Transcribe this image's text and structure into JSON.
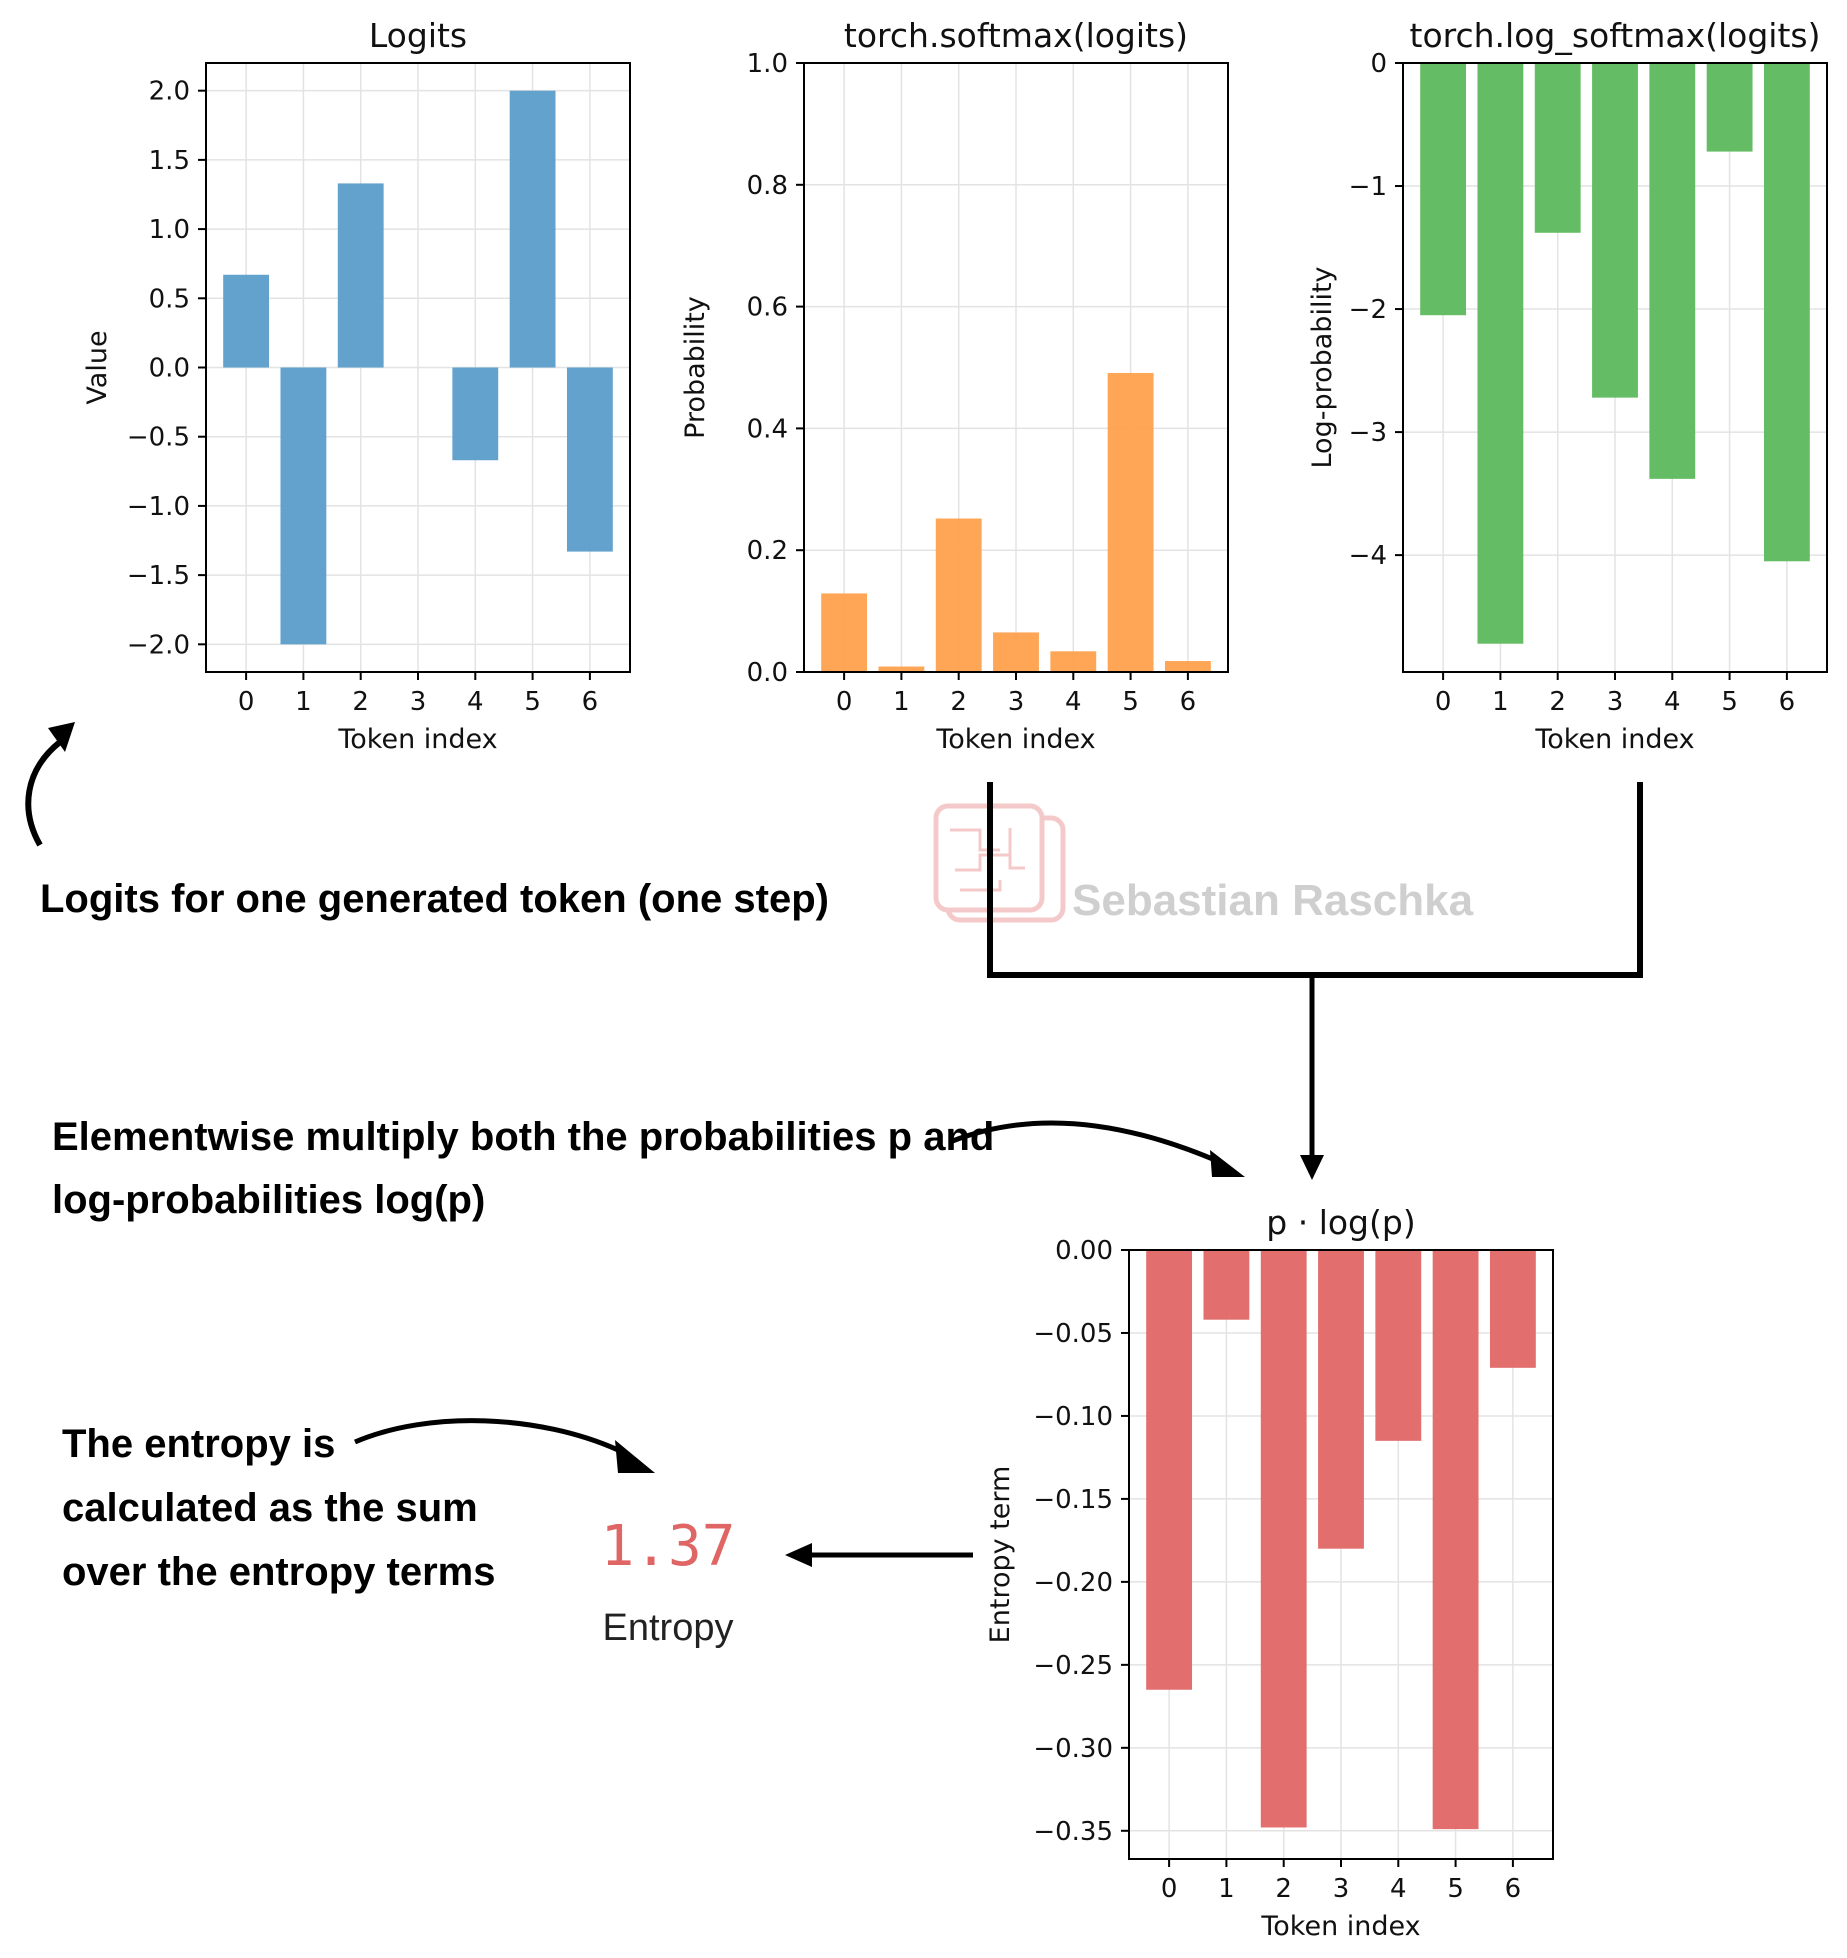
{
  "chart_data": [
    {
      "id": "logits",
      "type": "bar",
      "title": "Logits",
      "xlabel": "Token index",
      "ylabel": "Value",
      "categories": [
        "0",
        "1",
        "2",
        "3",
        "4",
        "5",
        "6"
      ],
      "values": [
        0.67,
        -2.0,
        1.33,
        0.0,
        -0.67,
        2.0,
        -1.33
      ],
      "ylim": [
        -2.2,
        2.2
      ],
      "yticks": [
        2.0,
        1.5,
        1.0,
        0.5,
        0.0,
        -0.5,
        -1.0,
        -1.5,
        -2.0
      ],
      "ytick_labels": [
        "2.0",
        "1.5",
        "1.0",
        "0.5",
        "0.0",
        "−0.5",
        "−1.0",
        "−1.5",
        "−2.0"
      ],
      "color": "#5b9dc9",
      "grid": true
    },
    {
      "id": "softmax",
      "type": "bar",
      "title": "torch.softmax(logits)",
      "xlabel": "Token index",
      "ylabel": "Probability",
      "categories": [
        "0",
        "1",
        "2",
        "3",
        "4",
        "5",
        "6"
      ],
      "values": [
        0.129,
        0.009,
        0.252,
        0.065,
        0.034,
        0.491,
        0.018
      ],
      "ylim": [
        0.0,
        1.0
      ],
      "yticks": [
        1.0,
        0.8,
        0.6,
        0.4,
        0.2,
        0.0
      ],
      "ytick_labels": [
        "1.0",
        "0.8",
        "0.6",
        "0.4",
        "0.2",
        "0.0"
      ],
      "color": "#ffa04d",
      "grid": true
    },
    {
      "id": "log_softmax",
      "type": "bar",
      "title": "torch.log_softmax(logits)",
      "xlabel": "Token index",
      "ylabel": "Log-probability",
      "categories": [
        "0",
        "1",
        "2",
        "3",
        "4",
        "5",
        "6"
      ],
      "values": [
        -2.05,
        -4.72,
        -1.38,
        -2.72,
        -3.38,
        -0.72,
        -4.05
      ],
      "ylim": [
        -4.95,
        0.0
      ],
      "yticks": [
        0,
        -1,
        -2,
        -3,
        -4
      ],
      "ytick_labels": [
        "0",
        "−1",
        "−2",
        "−3",
        "−4"
      ],
      "color": "#5cb85c",
      "grid": true
    },
    {
      "id": "entropy_terms",
      "type": "bar",
      "title": "p · log(p)",
      "xlabel": "Token index",
      "ylabel": "Entropy term",
      "categories": [
        "0",
        "1",
        "2",
        "3",
        "4",
        "5",
        "6"
      ],
      "values": [
        -0.265,
        -0.042,
        -0.348,
        -0.18,
        -0.115,
        -0.349,
        -0.071
      ],
      "ylim": [
        -0.367,
        0.0
      ],
      "yticks": [
        0.0,
        -0.05,
        -0.1,
        -0.15,
        -0.2,
        -0.25,
        -0.3,
        -0.35
      ],
      "ytick_labels": [
        "0.00",
        "−0.05",
        "−0.10",
        "−0.15",
        "−0.20",
        "−0.25",
        "−0.30",
        "−0.35"
      ],
      "color": "#e06666",
      "grid": true
    }
  ],
  "annotations": {
    "logits_caption": "Logits for one generated token (one step)",
    "multiply_line1": "Elementwise multiply both the probabilities p and",
    "multiply_line2": "log-probabilities log(p)",
    "sum_line1": "The entropy is",
    "sum_line2": "calculated as the sum",
    "sum_line3": "over the entropy terms"
  },
  "result": {
    "value": "1.37",
    "label": "Entropy"
  },
  "watermark": {
    "text": "Sebastian Raschka"
  },
  "colors": {
    "logits": "#5b9dc9",
    "softmax": "#ffa04d",
    "log_softmax": "#5cb85c",
    "entropy": "#e06666"
  }
}
